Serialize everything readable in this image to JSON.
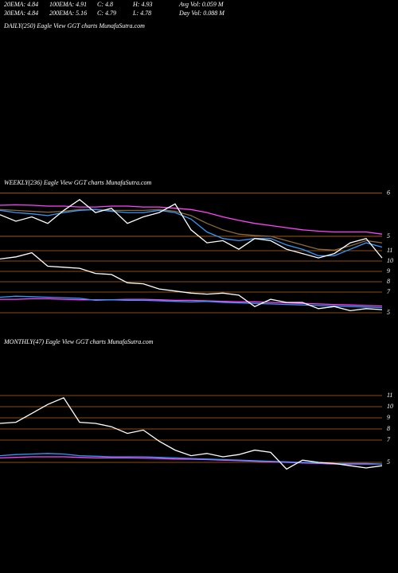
{
  "header": {
    "rows": [
      [
        "20EMA: 4.84",
        "100EMA: 4.91",
        "C: 4.8",
        "H: 4.93",
        "Avg Vol: 0.059 M"
      ],
      [
        "30EMA: 4.84",
        "200EMA: 5.16",
        "C: 4.79",
        "L: 4.78",
        "Day Vol: 0.088  M"
      ]
    ]
  },
  "chart_data": [
    {
      "type": "line",
      "title": "DAILY(250) Eagle  View  GGT charts MunafaSutra.com",
      "series": []
    },
    {
      "type": "line",
      "title": "WEEKLY(236) Eagle  View  GGT charts MunafaSutra.com",
      "ylim": [
        3.1,
        6.05
      ],
      "yticks": [
        6,
        5
      ],
      "y2lim": [
        4.46,
        16.77
      ],
      "y2ticks": [
        11,
        10,
        9,
        8,
        7,
        5
      ],
      "grid": true,
      "grid_color": "#b8661a",
      "series": [
        {
          "color": "#ff44ff",
          "values": [
            5.72,
            5.73,
            5.72,
            5.7,
            5.7,
            5.68,
            5.68,
            5.7,
            5.7,
            5.68,
            5.68,
            5.65,
            5.62,
            5.55,
            5.45,
            5.37,
            5.3,
            5.25,
            5.2,
            5.15,
            5.12,
            5.1,
            5.1,
            5.1,
            5.05
          ]
        },
        {
          "color": "#8b6a3a",
          "values": [
            5.62,
            5.6,
            5.58,
            5.56,
            5.58,
            5.62,
            5.62,
            5.6,
            5.6,
            5.6,
            5.62,
            5.58,
            5.48,
            5.3,
            5.15,
            5.05,
            5.02,
            5.0,
            4.9,
            4.8,
            4.7,
            4.68,
            4.78,
            4.9,
            4.85
          ]
        },
        {
          "color": "#3399ff",
          "values": [
            5.6,
            5.55,
            5.52,
            5.48,
            5.55,
            5.6,
            5.62,
            5.58,
            5.55,
            5.55,
            5.6,
            5.55,
            5.4,
            5.1,
            4.95,
            4.9,
            4.95,
            4.95,
            4.8,
            4.7,
            4.55,
            4.55,
            4.7,
            4.85,
            4.75
          ]
        },
        {
          "color": "#ffffff",
          "values": [
            5.5,
            5.35,
            5.45,
            5.3,
            5.6,
            5.85,
            5.55,
            5.65,
            5.3,
            5.45,
            5.55,
            5.75,
            5.15,
            4.85,
            4.9,
            4.7,
            4.95,
            4.9,
            4.7,
            4.6,
            4.5,
            4.6,
            4.85,
            4.95,
            4.5
          ]
        },
        {
          "color": "#ff44ff",
          "axis": "y2",
          "values": [
            6.3,
            6.3,
            6.35,
            6.35,
            6.3,
            6.25,
            6.25,
            6.25,
            6.3,
            6.3,
            6.25,
            6.2,
            6.2,
            6.15,
            6.1,
            6.05,
            6.05,
            6.0,
            5.95,
            5.9,
            5.85,
            5.8,
            5.75,
            5.7,
            5.65
          ]
        },
        {
          "color": "#3399ff",
          "axis": "y2",
          "values": [
            6.5,
            6.6,
            6.55,
            6.5,
            6.45,
            6.4,
            6.2,
            6.25,
            6.2,
            6.2,
            6.15,
            6.1,
            6.05,
            6.1,
            6.0,
            5.95,
            5.9,
            5.85,
            5.8,
            5.75,
            5.7,
            5.65,
            5.6,
            5.55,
            5.5
          ]
        },
        {
          "color": "#ffffff",
          "axis": "y2",
          "values": [
            10.2,
            10.4,
            10.8,
            9.5,
            9.4,
            9.3,
            8.8,
            8.7,
            7.9,
            7.8,
            7.3,
            7.1,
            6.9,
            6.8,
            6.9,
            6.7,
            5.6,
            6.3,
            6.0,
            6.0,
            5.4,
            5.6,
            5.2,
            5.4,
            5.3
          ]
        }
      ]
    },
    {
      "type": "line",
      "title": "MONTHLY(47) Eagle  View  GGT charts MunafaSutra.com",
      "ylim": [
        3.64,
        11.5
      ],
      "yticks": [
        11,
        10,
        9,
        8,
        7,
        5
      ],
      "grid": true,
      "grid_color": "#b8661a",
      "series": [
        {
          "color": "#ff44ff",
          "values": [
            5.4,
            5.45,
            5.5,
            5.5,
            5.5,
            5.45,
            5.4,
            5.4,
            5.4,
            5.38,
            5.35,
            5.3,
            5.28,
            5.25,
            5.2,
            5.15,
            5.1,
            5.05,
            5.0,
            4.95,
            4.9,
            4.85,
            4.85,
            4.85,
            4.85
          ]
        },
        {
          "color": "#3399ff",
          "values": [
            5.6,
            5.7,
            5.75,
            5.8,
            5.75,
            5.6,
            5.55,
            5.5,
            5.5,
            5.5,
            5.45,
            5.4,
            5.35,
            5.3,
            5.25,
            5.2,
            5.15,
            5.1,
            5.05,
            5.0,
            4.95,
            4.9,
            4.9,
            4.9,
            4.85
          ]
        },
        {
          "color": "#ffffff",
          "values": [
            8.5,
            8.6,
            9.4,
            10.2,
            10.8,
            8.6,
            8.5,
            8.2,
            7.6,
            7.9,
            6.9,
            6.1,
            5.6,
            5.8,
            5.5,
            5.7,
            6.1,
            5.9,
            4.4,
            5.2,
            5.0,
            4.9,
            4.7,
            4.5,
            4.7
          ]
        }
      ]
    }
  ]
}
